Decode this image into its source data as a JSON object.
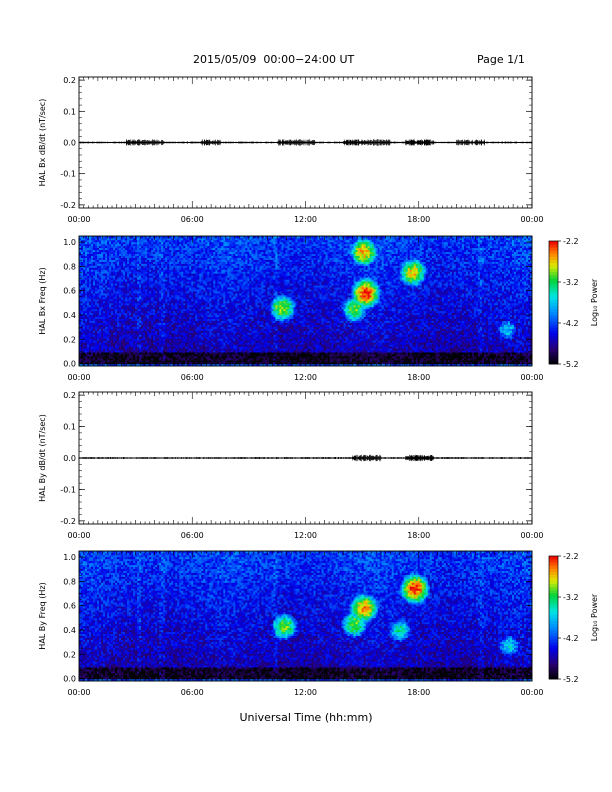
{
  "header": {
    "title": "2015/05/09  00:00−24:00 UT",
    "page": "Page 1/1"
  },
  "x_axis_title": "Universal Time (hh:mm)",
  "colorbar": {
    "label": "Log₁₀ Power",
    "ticks": [
      "-2.2",
      "-3.2",
      "-4.2",
      "-5.2"
    ],
    "vmin": -5.2,
    "vmax": -2.2
  },
  "chart_data": [
    {
      "type": "line",
      "panel": "bx-dbdt",
      "ylabel": "HAL Bx dB/dt (nT/sec)",
      "ylim": [
        -0.21,
        0.21
      ],
      "yticks": [
        "0.2",
        "0.1",
        "0.0",
        "-0.1",
        "-0.2"
      ],
      "xticks": [
        "00:00",
        "06:00",
        "12:00",
        "18:00",
        "00:00"
      ],
      "xlim_hours": [
        0,
        24
      ],
      "baseline": 0.0,
      "activity_windows_hours": [
        [
          2.5,
          4.5
        ],
        [
          6.5,
          7.5
        ],
        [
          10.5,
          12.5
        ],
        [
          14.0,
          16.5
        ],
        [
          17.3,
          18.8
        ],
        [
          20.0,
          21.5
        ]
      ]
    },
    {
      "type": "heatmap",
      "panel": "bx-spectrogram",
      "ylabel": "HAL Bx Freq (Hz)",
      "ylim": [
        -0.02,
        1.05
      ],
      "yticks": [
        "1.0",
        "0.8",
        "0.6",
        "0.4",
        "0.2",
        "0.0"
      ],
      "xticks": [
        "00:00",
        "06:00",
        "12:00",
        "18:00",
        "00:00"
      ],
      "xlim_hours": [
        0,
        24
      ],
      "colorscale": "rainbow",
      "zlim": [
        -5.2,
        -2.2
      ],
      "features": [
        {
          "t": 10.8,
          "f": 0.46,
          "level": -2.9
        },
        {
          "t": 15.2,
          "f": 0.58,
          "level": -2.3
        },
        {
          "t": 14.6,
          "f": 0.45,
          "level": -3.0
        },
        {
          "t": 15.1,
          "f": 0.92,
          "level": -2.6
        },
        {
          "t": 17.7,
          "f": 0.75,
          "level": -2.7
        },
        {
          "t": 22.7,
          "f": 0.28,
          "level": -3.7
        }
      ]
    },
    {
      "type": "line",
      "panel": "by-dbdt",
      "ylabel": "HAL By dB/dt (nT/sec)",
      "ylim": [
        -0.21,
        0.21
      ],
      "yticks": [
        "0.2",
        "0.1",
        "0.0",
        "-0.1",
        "-0.2"
      ],
      "xticks": [
        "00:00",
        "06:00",
        "12:00",
        "18:00",
        "00:00"
      ],
      "xlim_hours": [
        0,
        24
      ],
      "baseline": 0.0,
      "activity_windows_hours": [
        [
          17.3,
          18.8
        ],
        [
          14.5,
          16.0
        ]
      ]
    },
    {
      "type": "heatmap",
      "panel": "by-spectrogram",
      "ylabel": "HAL By Freq (Hz)",
      "ylim": [
        -0.02,
        1.05
      ],
      "yticks": [
        "1.0",
        "0.8",
        "0.6",
        "0.4",
        "0.2",
        "0.0"
      ],
      "xticks": [
        "00:00",
        "06:00",
        "12:00",
        "18:00",
        "00:00"
      ],
      "xlim_hours": [
        0,
        24
      ],
      "colorscale": "rainbow",
      "zlim": [
        -5.2,
        -2.2
      ],
      "features": [
        {
          "t": 10.9,
          "f": 0.43,
          "level": -3.0
        },
        {
          "t": 15.1,
          "f": 0.58,
          "level": -2.5
        },
        {
          "t": 14.6,
          "f": 0.45,
          "level": -3.0
        },
        {
          "t": 17.8,
          "f": 0.74,
          "level": -2.3
        },
        {
          "t": 17.0,
          "f": 0.4,
          "level": -3.4
        },
        {
          "t": 22.8,
          "f": 0.27,
          "level": -3.6
        }
      ]
    }
  ]
}
